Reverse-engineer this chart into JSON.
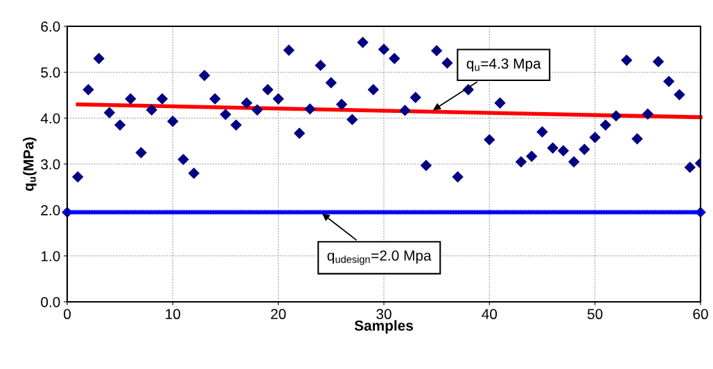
{
  "chart_data": {
    "type": "scatter",
    "xlabel": "Samples",
    "ylabel": "q$_{u}$(MPa)",
    "xlim": [
      0,
      60
    ],
    "xticks": [
      0,
      10,
      20,
      30,
      40,
      50,
      60
    ],
    "ylim": [
      0,
      6
    ],
    "yticks": [
      {
        "value": 0,
        "label": "0.0"
      },
      {
        "value": 1,
        "label": "1.0"
      },
      {
        "value": 2,
        "label": "2.0"
      },
      {
        "value": 3,
        "label": "3.0"
      },
      {
        "value": 4,
        "label": "4.0"
      },
      {
        "value": 5,
        "label": "5.0"
      },
      {
        "value": 6,
        "label": "6.0"
      }
    ],
    "grid": true,
    "legend": false,
    "series": [
      {
        "marker": "diamond",
        "color": "#000080",
        "x": [
          1,
          2,
          3,
          4,
          5,
          6,
          7,
          8,
          9,
          10,
          11,
          12,
          13,
          14,
          15,
          16,
          17,
          18,
          19,
          20,
          21,
          22,
          23,
          24,
          25,
          26,
          27,
          28,
          29,
          30,
          31,
          32,
          33,
          34,
          35,
          36,
          37,
          38,
          40,
          41,
          43,
          44,
          45,
          46,
          47,
          48,
          49,
          50,
          51,
          52,
          53,
          54,
          55,
          56,
          57,
          58,
          59,
          60
        ],
        "values": [
          2.72,
          4.62,
          5.3,
          4.12,
          3.85,
          4.42,
          3.25,
          4.18,
          4.42,
          3.93,
          3.1,
          2.8,
          4.93,
          4.42,
          4.08,
          3.85,
          4.33,
          4.18,
          4.62,
          4.42,
          5.48,
          3.67,
          4.2,
          5.15,
          4.77,
          4.3,
          3.97,
          5.65,
          4.62,
          5.5,
          5.3,
          4.17,
          4.45,
          2.97,
          5.47,
          5.2,
          2.72,
          4.62,
          3.53,
          4.33,
          3.05,
          3.17,
          3.7,
          3.35,
          3.29,
          3.05,
          3.32,
          3.58,
          3.85,
          4.05,
          5.26,
          3.55,
          4.09,
          5.23,
          4.8,
          4.51,
          2.93,
          3.02
        ]
      },
      {
        "type": "line",
        "marker": "none",
        "color": "#ff0000",
        "x": [
          1,
          60
        ],
        "values": [
          4.3,
          4.02
        ]
      },
      {
        "type": "line",
        "marker": "diamond",
        "color": "#0000ff",
        "x": [
          0,
          60
        ],
        "values": [
          1.95,
          1.95
        ]
      }
    ],
    "annotations": [
      {
        "text": "q$_{u}$=4.3 Mpa",
        "x": 34.5,
        "y": 4.15
      },
      {
        "text": "q$_{udesign}$=2.0 Mpa",
        "x": 24,
        "y": 1.95
      }
    ]
  }
}
